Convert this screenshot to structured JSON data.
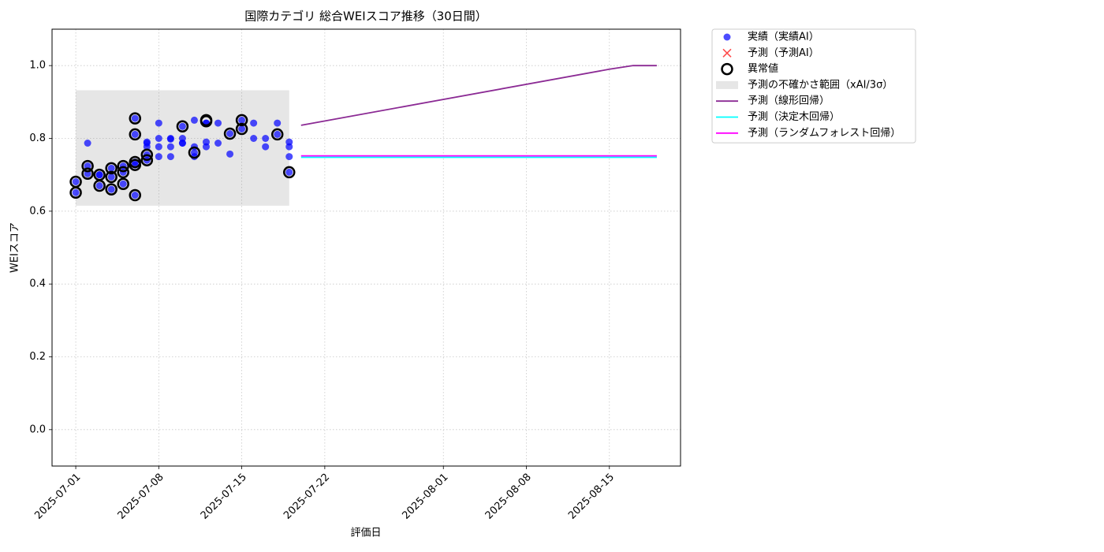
{
  "chart_data": {
    "type": "scatter",
    "title": "国際カテゴリ 総合WEIスコア推移（30日間）",
    "xlabel": "評価日",
    "ylabel": "WEIスコア",
    "xlim": [
      "2025-06-29",
      "2025-08-21"
    ],
    "xticks": [
      "2025-07-01",
      "2025-07-08",
      "2025-07-15",
      "2025-07-22",
      "2025-08-01",
      "2025-08-08",
      "2025-08-15"
    ],
    "ylim": [
      -0.1,
      1.1
    ],
    "yticks": [
      {
        "value": 0,
        "label": "0.0"
      },
      0.2,
      0.4,
      0.6,
      0.8,
      {
        "value": 1,
        "label": "1.0"
      }
    ],
    "grid": true,
    "legend": "outside upper right",
    "series": [
      {
        "name": "実績（実績AI）",
        "type": "scatter",
        "marker": "dot",
        "color": "#0000ff",
        "x": [
          "2025-07-01",
          "2025-07-01",
          "2025-07-02",
          "2025-07-02",
          "2025-07-02",
          "2025-07-03",
          "2025-07-03",
          "2025-07-03",
          "2025-07-04",
          "2025-07-04",
          "2025-07-04",
          "2025-07-05",
          "2025-07-05",
          "2025-07-05",
          "2025-07-06",
          "2025-07-06",
          "2025-07-06",
          "2025-07-06",
          "2025-07-06",
          "2025-07-07",
          "2025-07-07",
          "2025-07-07",
          "2025-07-07",
          "2025-07-07",
          "2025-07-08",
          "2025-07-08",
          "2025-07-08",
          "2025-07-08",
          "2025-07-09",
          "2025-07-09",
          "2025-07-09",
          "2025-07-09",
          "2025-07-10",
          "2025-07-10",
          "2025-07-10",
          "2025-07-10",
          "2025-07-11",
          "2025-07-11",
          "2025-07-11",
          "2025-07-11",
          "2025-07-12",
          "2025-07-12",
          "2025-07-12",
          "2025-07-12",
          "2025-07-13",
          "2025-07-13",
          "2025-07-14",
          "2025-07-14",
          "2025-07-15",
          "2025-07-15",
          "2025-07-16",
          "2025-07-16",
          "2025-07-17",
          "2025-07-17",
          "2025-07-18",
          "2025-07-18",
          "2025-07-19",
          "2025-07-19",
          "2025-07-19",
          "2025-07-19"
        ],
        "values": [
          0.651,
          0.681,
          0.703,
          0.787,
          0.724,
          0.7,
          0.67,
          0.7,
          0.718,
          0.66,
          0.694,
          0.707,
          0.675,
          0.724,
          0.735,
          0.644,
          0.727,
          0.811,
          0.855,
          0.79,
          0.755,
          0.777,
          0.787,
          0.74,
          0.777,
          0.75,
          0.842,
          0.8,
          0.777,
          0.75,
          0.8,
          0.798,
          0.833,
          0.787,
          0.8,
          0.787,
          0.75,
          0.777,
          0.761,
          0.85,
          0.79,
          0.842,
          0.777,
          0.842,
          0.787,
          0.842,
          0.813,
          0.757,
          0.85,
          0.826,
          0.842,
          0.8,
          0.777,
          0.8,
          0.842,
          0.811,
          0.777,
          0.707,
          0.75,
          0.79
        ]
      },
      {
        "name": "予測（予測AI）",
        "type": "scatter",
        "marker": "x",
        "color": "#ff0000",
        "x": [],
        "values": []
      },
      {
        "name": "異常値",
        "type": "scatter",
        "marker": "ring",
        "color": "#000000",
        "x": [
          "2025-07-01",
          "2025-07-01",
          "2025-07-02",
          "2025-07-02",
          "2025-07-03",
          "2025-07-03",
          "2025-07-04",
          "2025-07-04",
          "2025-07-04",
          "2025-07-05",
          "2025-07-05",
          "2025-07-05",
          "2025-07-06",
          "2025-07-06",
          "2025-07-06",
          "2025-07-06",
          "2025-07-06",
          "2025-07-07",
          "2025-07-07",
          "2025-07-10",
          "2025-07-11",
          "2025-07-12",
          "2025-07-12",
          "2025-07-14",
          "2025-07-15",
          "2025-07-15",
          "2025-07-18",
          "2025-07-19"
        ],
        "values": [
          0.651,
          0.681,
          0.703,
          0.724,
          0.7,
          0.67,
          0.718,
          0.66,
          0.694,
          0.707,
          0.675,
          0.724,
          0.735,
          0.644,
          0.727,
          0.811,
          0.855,
          0.755,
          0.74,
          0.833,
          0.761,
          0.85,
          0.847,
          0.813,
          0.85,
          0.826,
          0.811,
          0.707
        ]
      },
      {
        "name": "予測の不確かさ範囲（xAI/3σ）",
        "type": "band",
        "color": "#808080",
        "x": [
          "2025-07-01",
          "2025-07-19"
        ],
        "lower": [
          0.615,
          0.615
        ],
        "upper": [
          0.932,
          0.932
        ]
      },
      {
        "name": "予測（線形回帰）",
        "type": "line",
        "color": "#8b2a94",
        "x": [
          "2025-07-20",
          "2025-08-15",
          "2025-08-17",
          "2025-08-19"
        ],
        "values": [
          0.836,
          0.99,
          1.0,
          1.0
        ]
      },
      {
        "name": "予測（決定木回帰）",
        "type": "line",
        "color": "#00ffff",
        "x": [
          "2025-07-20",
          "2025-08-19"
        ],
        "values": [
          0.748,
          0.748
        ]
      },
      {
        "name": "予測（ランダムフォレスト回帰）",
        "type": "line",
        "color": "#ff00ff",
        "x": [
          "2025-07-20",
          "2025-08-19"
        ],
        "values": [
          0.752,
          0.752
        ]
      }
    ]
  }
}
